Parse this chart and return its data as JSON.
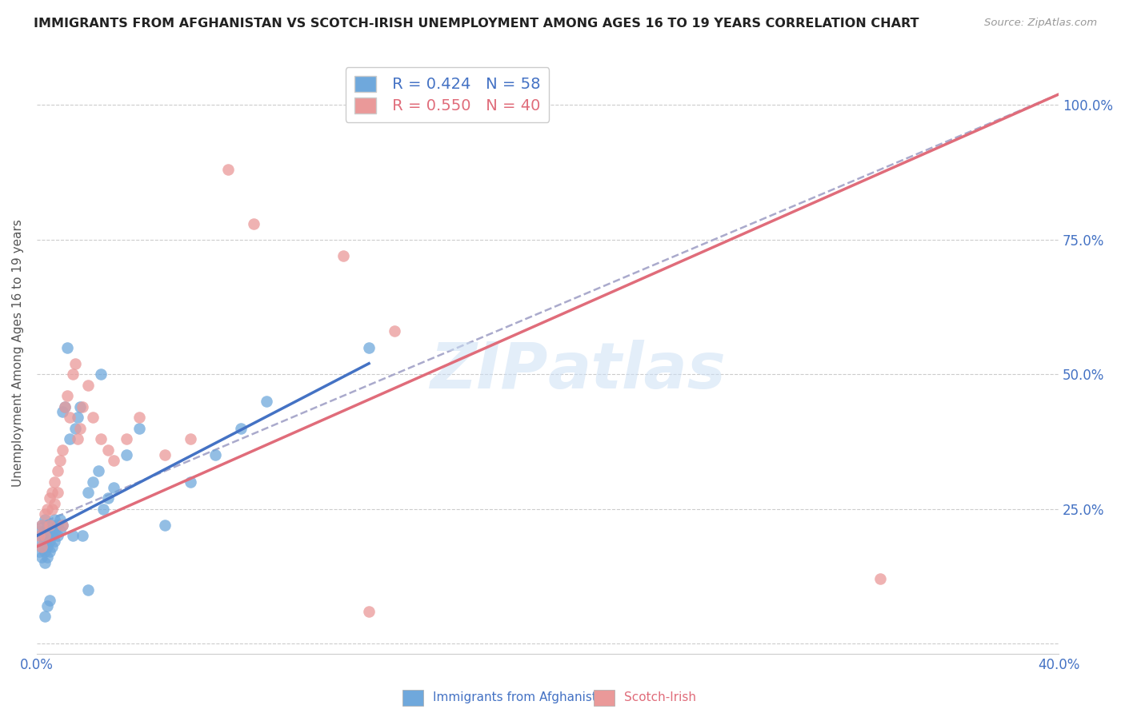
{
  "title": "IMMIGRANTS FROM AFGHANISTAN VS SCOTCH-IRISH UNEMPLOYMENT AMONG AGES 16 TO 19 YEARS CORRELATION CHART",
  "source": "Source: ZipAtlas.com",
  "ylabel": "Unemployment Among Ages 16 to 19 years",
  "xlim": [
    0.0,
    0.4
  ],
  "ylim": [
    -0.02,
    1.1
  ],
  "ytick_vals": [
    0.0,
    0.25,
    0.5,
    0.75,
    1.0
  ],
  "ytick_labels_right": [
    "",
    "25.0%",
    "50.0%",
    "75.0%",
    "100.0%"
  ],
  "xtick_vals": [
    0.0,
    0.05,
    0.1,
    0.15,
    0.2,
    0.25,
    0.3,
    0.35,
    0.4
  ],
  "xtick_labels": [
    "0.0%",
    "",
    "",
    "",
    "",
    "",
    "",
    "",
    "40.0%"
  ],
  "legend_r1": "R = 0.424",
  "legend_n1": "N = 58",
  "legend_r2": "R = 0.550",
  "legend_n2": "N = 40",
  "color_blue": "#6fa8dc",
  "color_pink": "#ea9999",
  "color_blue_line": "#4472c4",
  "color_pink_line": "#e06c7a",
  "color_dashed": "#aaaacc",
  "color_axis_label": "#4472c4",
  "color_title": "#222222",
  "watermark_color": "#cce0f5",
  "label1": "Immigrants from Afghanistan",
  "label2": "Scotch-Irish",
  "afg_x": [
    0.001,
    0.001,
    0.001,
    0.002,
    0.002,
    0.002,
    0.002,
    0.003,
    0.003,
    0.003,
    0.003,
    0.003,
    0.004,
    0.004,
    0.004,
    0.004,
    0.005,
    0.005,
    0.005,
    0.006,
    0.006,
    0.006,
    0.007,
    0.007,
    0.007,
    0.008,
    0.008,
    0.009,
    0.009,
    0.01,
    0.01,
    0.011,
    0.012,
    0.013,
    0.014,
    0.015,
    0.016,
    0.017,
    0.018,
    0.02,
    0.022,
    0.024,
    0.026,
    0.028,
    0.03,
    0.035,
    0.04,
    0.05,
    0.06,
    0.07,
    0.08,
    0.09,
    0.02,
    0.025,
    0.003,
    0.004,
    0.005,
    0.13
  ],
  "afg_y": [
    0.17,
    0.19,
    0.21,
    0.16,
    0.18,
    0.2,
    0.22,
    0.17,
    0.19,
    0.21,
    0.15,
    0.23,
    0.16,
    0.18,
    0.2,
    0.22,
    0.17,
    0.19,
    0.21,
    0.18,
    0.2,
    0.22,
    0.19,
    0.21,
    0.23,
    0.2,
    0.22,
    0.21,
    0.23,
    0.22,
    0.43,
    0.44,
    0.55,
    0.38,
    0.2,
    0.4,
    0.42,
    0.44,
    0.2,
    0.28,
    0.3,
    0.32,
    0.25,
    0.27,
    0.29,
    0.35,
    0.4,
    0.22,
    0.3,
    0.35,
    0.4,
    0.45,
    0.1,
    0.5,
    0.05,
    0.07,
    0.08,
    0.55
  ],
  "sci_x": [
    0.001,
    0.002,
    0.002,
    0.003,
    0.003,
    0.004,
    0.005,
    0.005,
    0.006,
    0.006,
    0.007,
    0.007,
    0.008,
    0.008,
    0.009,
    0.01,
    0.01,
    0.011,
    0.012,
    0.013,
    0.014,
    0.015,
    0.016,
    0.017,
    0.018,
    0.02,
    0.022,
    0.025,
    0.028,
    0.03,
    0.035,
    0.04,
    0.05,
    0.06,
    0.33,
    0.075,
    0.085,
    0.12,
    0.14,
    0.13
  ],
  "sci_y": [
    0.2,
    0.22,
    0.18,
    0.24,
    0.2,
    0.25,
    0.27,
    0.22,
    0.28,
    0.25,
    0.3,
    0.26,
    0.32,
    0.28,
    0.34,
    0.36,
    0.22,
    0.44,
    0.46,
    0.42,
    0.5,
    0.52,
    0.38,
    0.4,
    0.44,
    0.48,
    0.42,
    0.38,
    0.36,
    0.34,
    0.38,
    0.42,
    0.35,
    0.38,
    0.12,
    0.88,
    0.78,
    0.72,
    0.58,
    0.06
  ],
  "afg_line_x": [
    0.0,
    0.13
  ],
  "afg_line_y": [
    0.2,
    0.52
  ],
  "sci_line_x": [
    0.0,
    0.4
  ],
  "sci_line_y": [
    0.18,
    1.02
  ],
  "dash_line_x": [
    0.0,
    0.4
  ],
  "dash_line_y": [
    0.22,
    1.02
  ]
}
